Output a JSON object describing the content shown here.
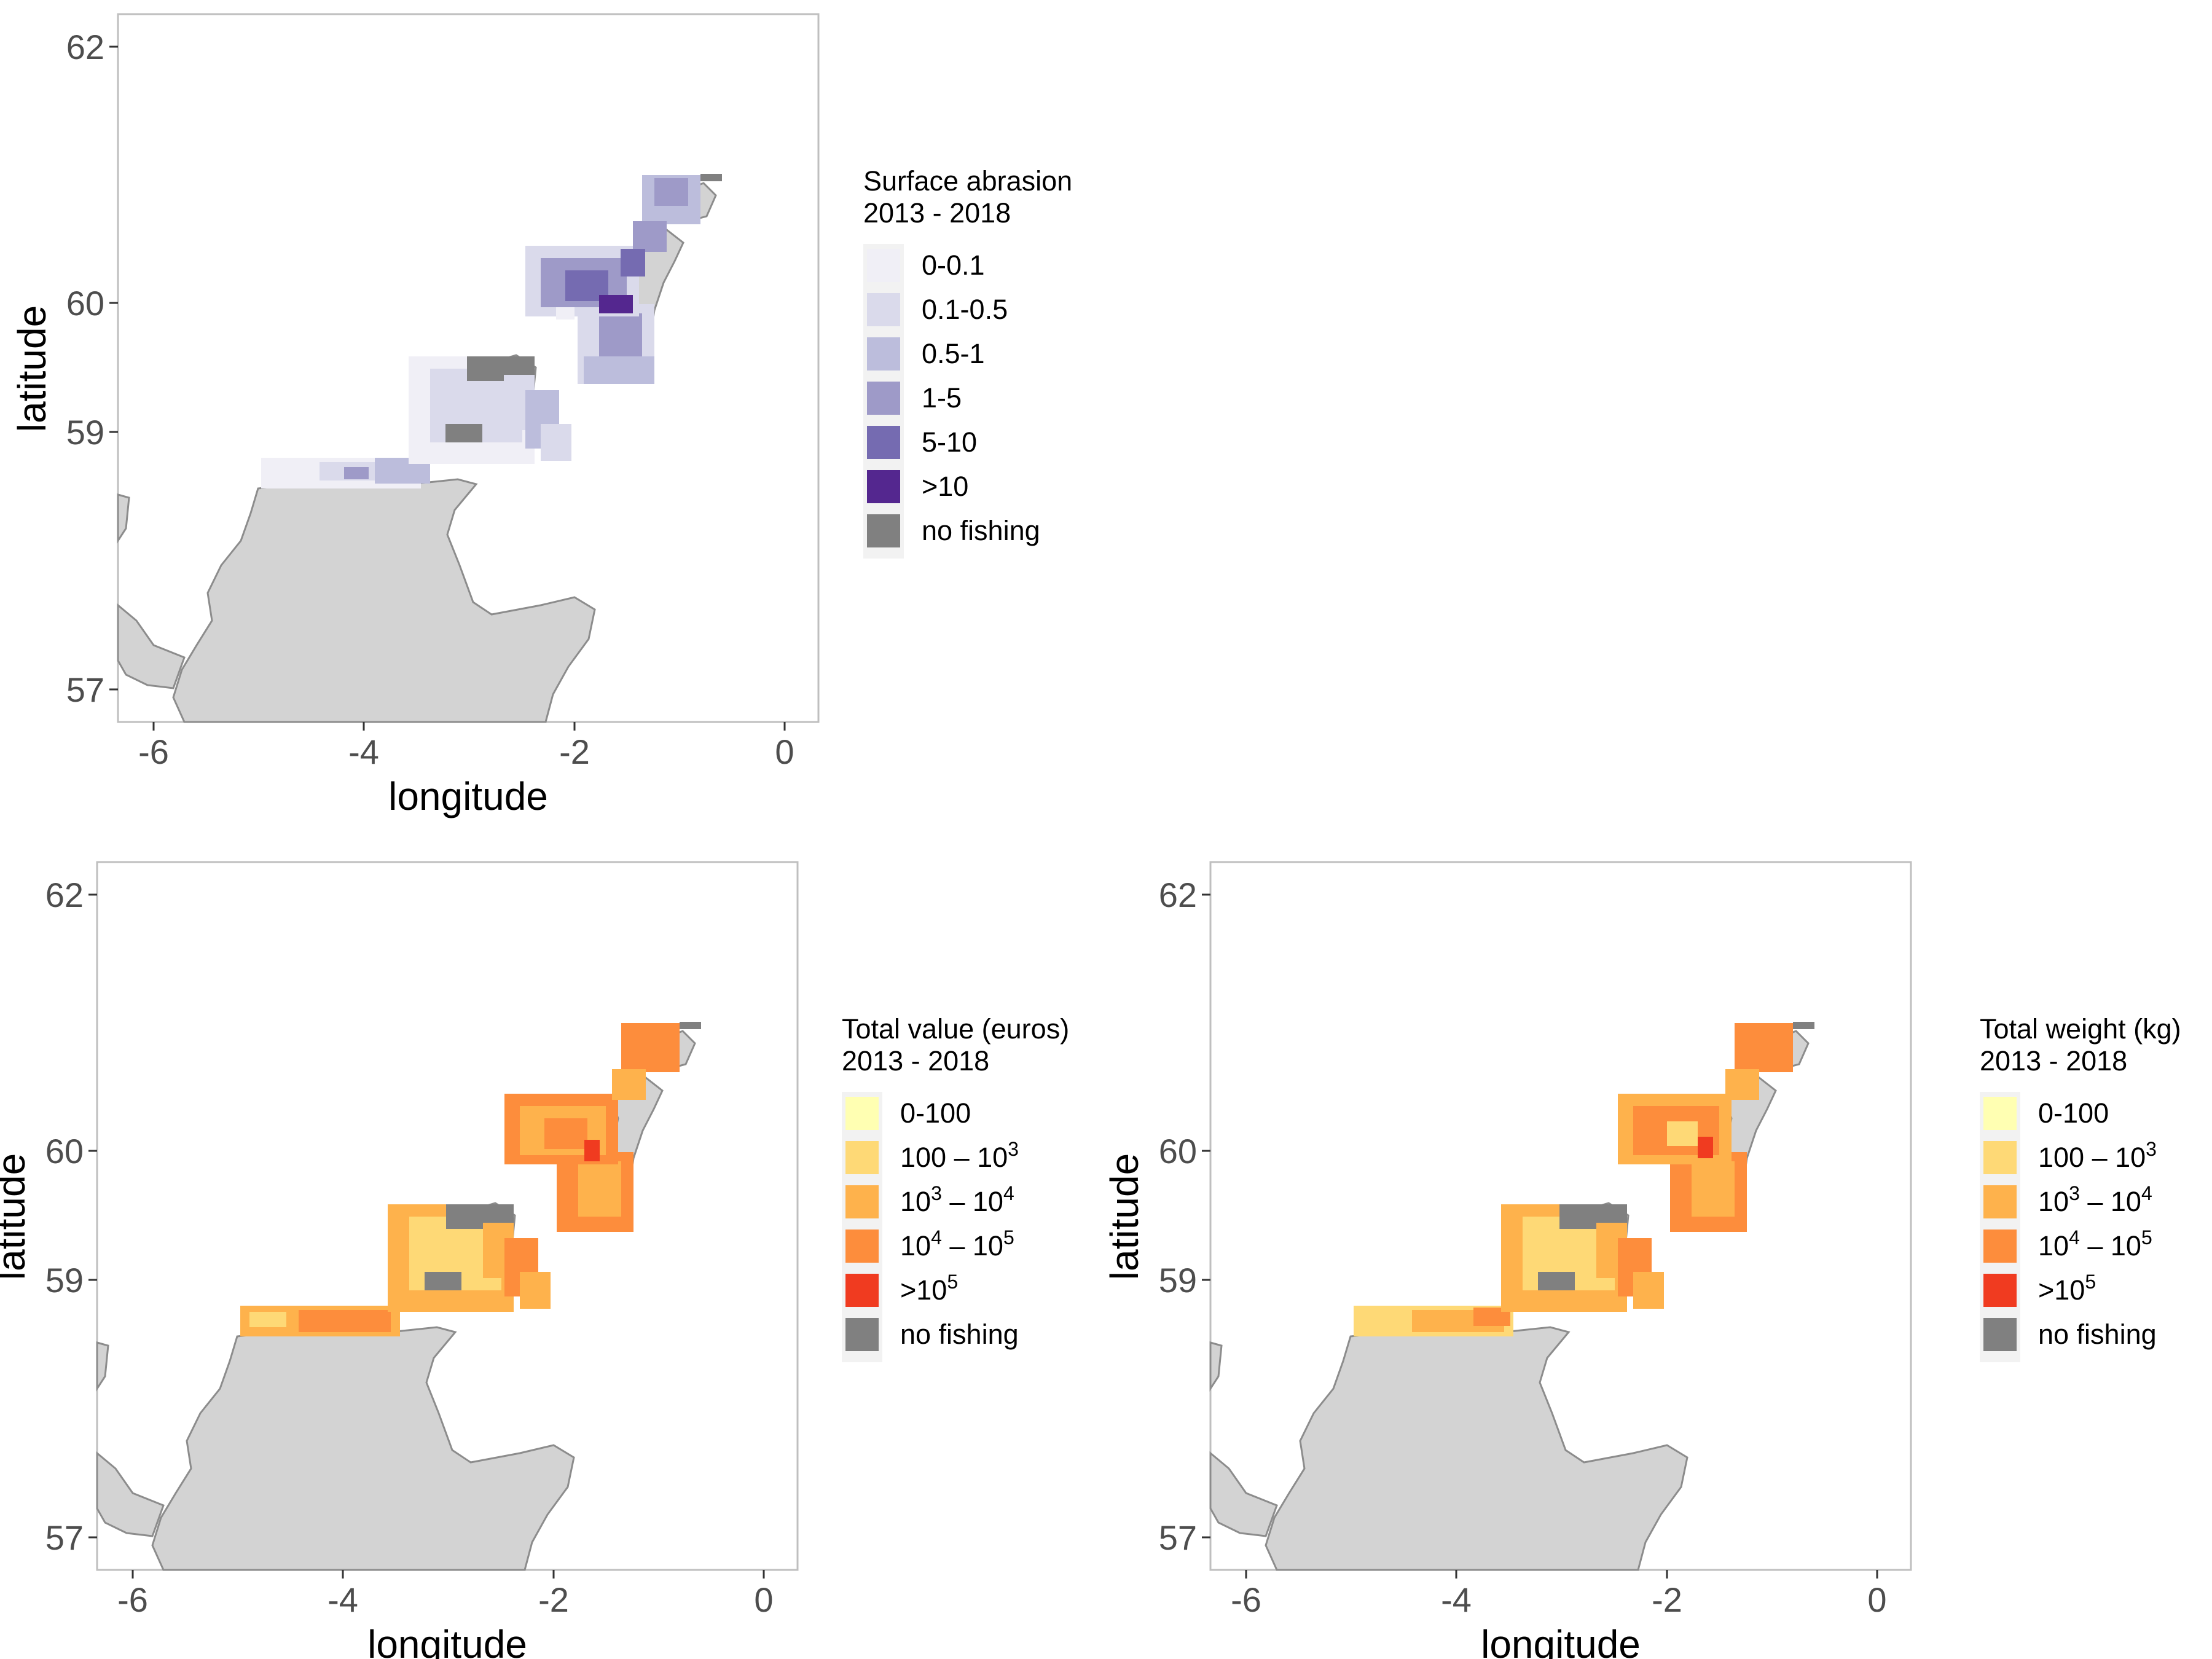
{
  "axes": {
    "x_label": "longitude",
    "y_label": "latitude",
    "x_ticks": [
      "-6",
      "-4",
      "-2",
      "0"
    ],
    "y_ticks": [
      "62",
      "60",
      "59",
      "57"
    ]
  },
  "maps": [
    {
      "id": "abrasion",
      "legend_title_1": "Surface abrasion",
      "legend_title_2": " 2013 - 2018",
      "legend": [
        {
          "label": "0-0.1",
          "color": "#f0eff6"
        },
        {
          "label": "0.1-0.5",
          "color": "#dadaeb"
        },
        {
          "label": "0.5-1",
          "color": "#bcbddc"
        },
        {
          "label": "1-5",
          "color": "#9e9ac8"
        },
        {
          "label": "5-10",
          "color": "#756bb1"
        },
        {
          "label": ">10",
          "color": "#54278f"
        },
        {
          "label": "no fishing",
          "color": "#808080"
        }
      ]
    },
    {
      "id": "value",
      "legend_title_1": "Total value (euros)",
      "legend_title_2": " 2013 - 2018",
      "legend": [
        {
          "label": "0-100",
          "color": "#ffffb2"
        },
        {
          "label": "100 – 10",
          "sup": "3",
          "color": "#fed976"
        },
        {
          "label": "10",
          "sup": "3",
          "label_tail": " – 10",
          "sup_tail": "4",
          "color": "#feb24c"
        },
        {
          "label": "10",
          "sup": "4",
          "label_tail": " – 10",
          "sup_tail": "5",
          "color": "#fd8d3c"
        },
        {
          "label": ">10",
          "sup": "5",
          "color": "#f03b20"
        },
        {
          "label": "no fishing",
          "color": "#808080"
        }
      ]
    },
    {
      "id": "weight",
      "legend_title_1": "Total weight (kg)",
      "legend_title_2": " 2013 - 2018",
      "legend": [
        {
          "label": "0-100",
          "color": "#ffffb2"
        },
        {
          "label": "100 – 10",
          "sup": "3",
          "color": "#fed976"
        },
        {
          "label": "10",
          "sup": "3",
          "label_tail": " – 10",
          "sup_tail": "4",
          "color": "#feb24c"
        },
        {
          "label": "10",
          "sup": "4",
          "label_tail": " – 10",
          "sup_tail": "5",
          "color": "#fd8d3c"
        },
        {
          "label": ">10",
          "sup": "5",
          "color": "#f03b20"
        },
        {
          "label": "no fishing",
          "color": "#808080"
        }
      ]
    }
  ],
  "colors": {
    "land": "#d3d3d3",
    "land_outline": "#8c8c8c",
    "panel_border": "#bfbfbf"
  }
}
